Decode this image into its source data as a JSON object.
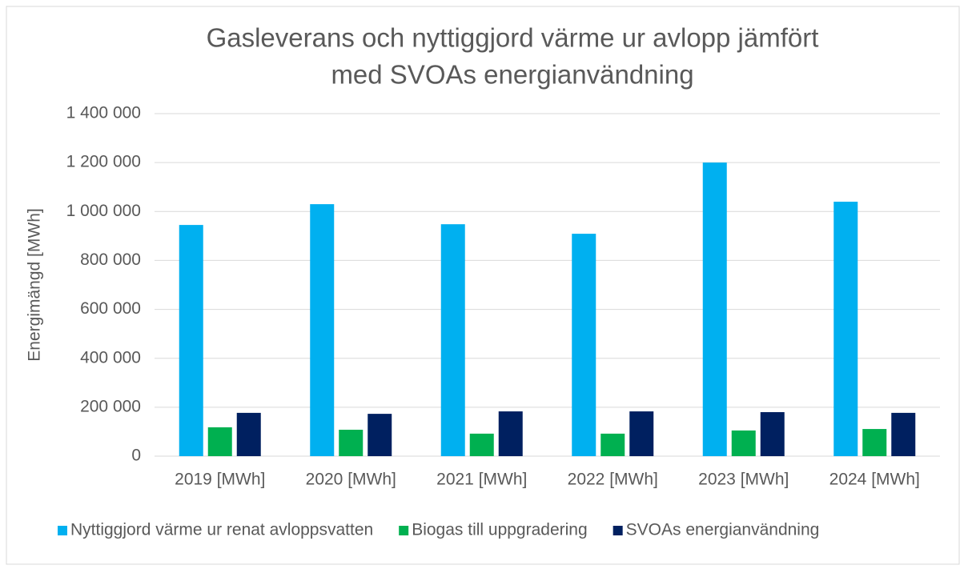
{
  "chart_data": {
    "type": "bar",
    "title": [
      "Gasleverans och nyttiggjord värme ur avlopp jämfört",
      "med SVOAs energianvändning"
    ],
    "y_label": "Energimängd [MWh]",
    "categories": [
      "2019 [MWh]",
      "2020 [MWh]",
      "2021 [MWh]",
      "2022 [MWh]",
      "2023 [MWh]",
      "2024 [MWh]"
    ],
    "series": [
      {
        "name": "Nyttiggjord värme ur renat avloppsvatten",
        "color": "#00b0f0",
        "values": [
          945000,
          1030000,
          948000,
          909000,
          1200000,
          1040000
        ]
      },
      {
        "name": "Biogas till uppgradering",
        "color": "#00b050",
        "values": [
          118000,
          108000,
          92000,
          92000,
          105000,
          111000
        ]
      },
      {
        "name": "SVOAs energianvändning",
        "color": "#002060",
        "values": [
          177000,
          173000,
          183000,
          183000,
          180000,
          177000
        ]
      }
    ],
    "ylim": [
      0,
      1400000
    ],
    "yticks": [
      0,
      {
        "value": 200000,
        "label": "200 000"
      },
      {
        "value": 400000,
        "label": "400 000"
      },
      {
        "value": 600000,
        "label": "600 000"
      },
      {
        "value": 800000,
        "label": "800 000"
      },
      {
        "value": 1000000,
        "label": "1 000 000"
      },
      {
        "value": 1200000,
        "label": "1 200 000"
      },
      {
        "value": 1400000,
        "label": "1 400 000"
      }
    ],
    "grid": true,
    "legend": "bottom"
  }
}
